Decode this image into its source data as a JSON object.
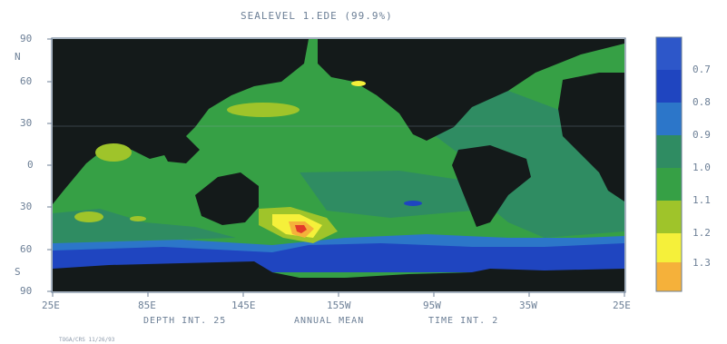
{
  "title": "SEALEVEL  1.EDE (99.9%)",
  "lat_labels": [
    "90",
    "60",
    "30",
    "0",
    "30",
    "60",
    "90"
  ],
  "hemisphere_labels": {
    "north": "N",
    "south": "S"
  },
  "lon_labels": [
    "25E",
    "85E",
    "145E",
    "155W",
    "95W",
    "35W",
    "25E"
  ],
  "footer": {
    "left": "DEPTH INT. 25",
    "center": "ANNUAL MEAN",
    "right": "TIME INT. 2"
  },
  "stamp": "TOGA/CRS  11/26/93",
  "legend": {
    "labels": [
      "0.7",
      "0.8",
      "0.9",
      "1.0",
      "1.1",
      "1.2",
      "1.3"
    ],
    "colors": [
      "#2d57c9",
      "#1f45c0",
      "#2c76c9",
      "#2f8c62",
      "#36a045",
      "#9fc42a",
      "#f5f03a",
      "#f5b13a"
    ]
  },
  "colors": {
    "land": "#141a1a",
    "ocean_main": "#36a045",
    "ocean_teal": "#2f8c62",
    "ocean_blue": "#1f45c0",
    "ocean_lightblue": "#2c76c9",
    "yellowgreen": "#9fc42a",
    "yellow": "#f5f03a",
    "orange": "#f5b13a",
    "red": "#e23a2a",
    "axis": "#6c7f96"
  }
}
